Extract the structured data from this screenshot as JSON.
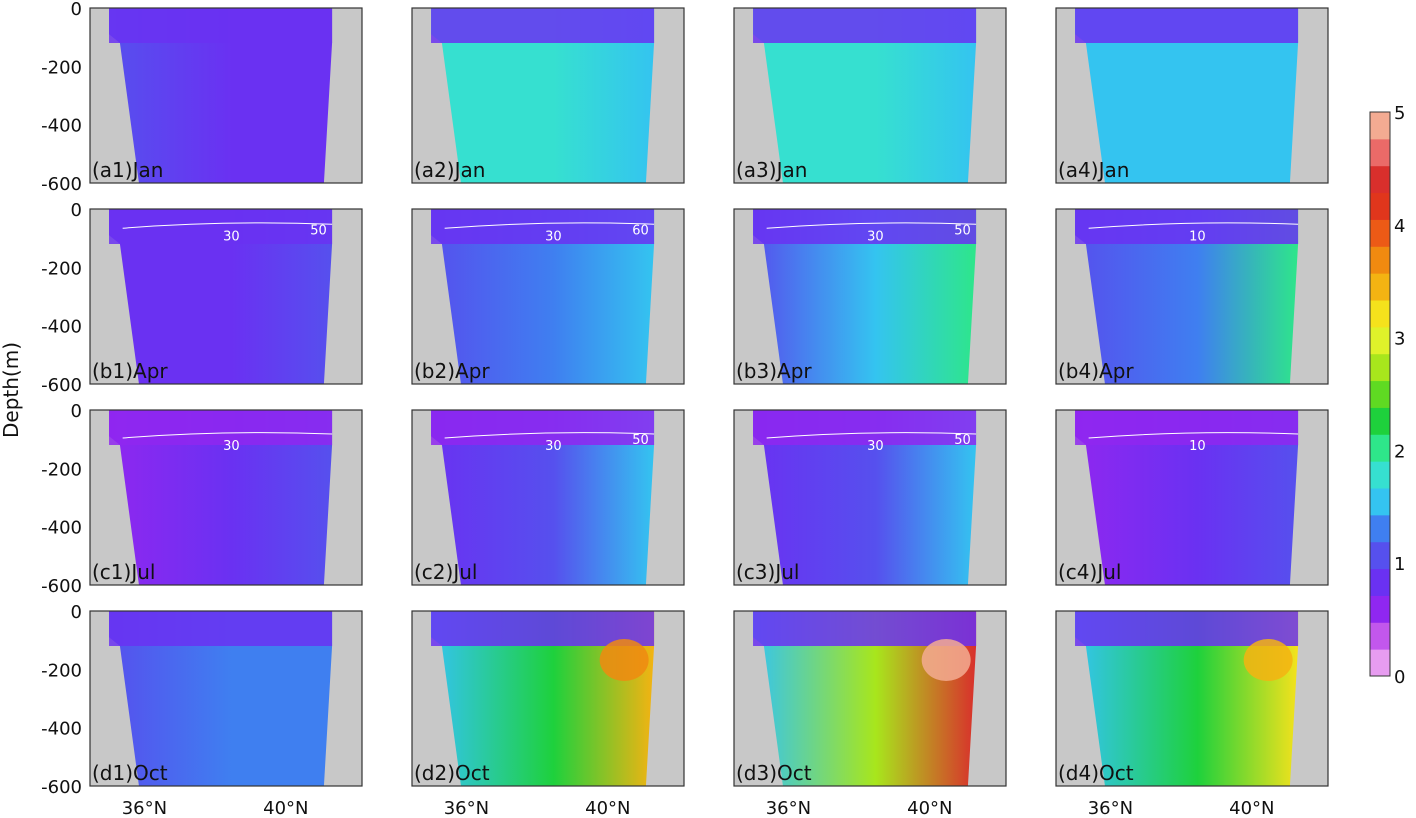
{
  "chart_data": {
    "type": "heatmap",
    "ylabel": "Depth(m)",
    "y_ticks": [
      "0",
      "-200",
      "-400",
      "-600"
    ],
    "x_ticks": [
      "36°N",
      "40°N"
    ],
    "ylim": [
      -600,
      0
    ],
    "colorbar": {
      "min": 0,
      "max": 5,
      "ticks": [
        "0",
        "1",
        "2",
        "3",
        "4",
        "5"
      ],
      "colormap": [
        "#e79cf0",
        "#c257ec",
        "#8f27f0",
        "#6a31f2",
        "#5650ee",
        "#3f7ff0",
        "#34c4f0",
        "#36e0d0",
        "#2ee68a",
        "#1ed13c",
        "#5fda22",
        "#a8e61c",
        "#dff22a",
        "#f5e21c",
        "#f4b312",
        "#f08a10",
        "#ec5a16",
        "#e0361c",
        "#d92f2c",
        "#ea6a68",
        "#f3ab92"
      ]
    },
    "panels": [
      {
        "label": "(a1)Jan",
        "contours": []
      },
      {
        "label": "(a2)Jan",
        "contours": []
      },
      {
        "label": "(a3)Jan",
        "contours": []
      },
      {
        "label": "(a4)Jan",
        "contours": []
      },
      {
        "label": "(b1)Apr",
        "contours": [
          "30",
          "50"
        ]
      },
      {
        "label": "(b2)Apr",
        "contours": [
          "30",
          "60"
        ]
      },
      {
        "label": "(b3)Apr",
        "contours": [
          "30",
          "50"
        ]
      },
      {
        "label": "(b4)Apr",
        "contours": [
          "10"
        ]
      },
      {
        "label": "(c1)Jul",
        "contours": [
          "30"
        ]
      },
      {
        "label": "(c2)Jul",
        "contours": [
          "30",
          "50"
        ]
      },
      {
        "label": "(c3)Jul",
        "contours": [
          "30",
          "50"
        ]
      },
      {
        "label": "(c4)Jul",
        "contours": [
          "10"
        ]
      },
      {
        "label": "(d1)Oct",
        "contours": []
      },
      {
        "label": "(d2)Oct",
        "contours": []
      },
      {
        "label": "(d3)Oct",
        "contours": []
      },
      {
        "label": "(d4)Oct",
        "contours": []
      }
    ]
  }
}
